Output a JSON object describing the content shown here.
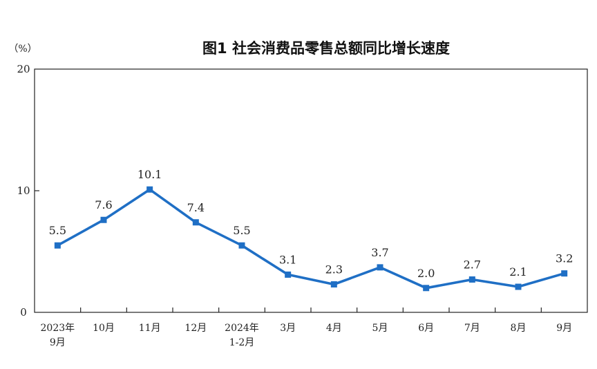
{
  "chart_data": {
    "type": "line",
    "title": "图1  社会消费品零售总额同比增长速度",
    "unit_label": "（%）",
    "ylim": [
      0,
      20
    ],
    "yticks": [
      "0",
      "10",
      "20"
    ],
    "categories": [
      [
        "2023年",
        "9月"
      ],
      [
        "10月"
      ],
      [
        "11月"
      ],
      [
        "12月"
      ],
      [
        "2024年",
        "1-2月"
      ],
      [
        "3月"
      ],
      [
        "4月"
      ],
      [
        "5月"
      ],
      [
        "6月"
      ],
      [
        "7月"
      ],
      [
        "8月"
      ],
      [
        "9月"
      ]
    ],
    "values": [
      5.5,
      7.6,
      10.1,
      7.4,
      5.5,
      3.1,
      2.3,
      3.7,
      2.0,
      2.7,
      2.1,
      3.2
    ],
    "data_labels": [
      "5.5",
      "7.6",
      "10.1",
      "7.4",
      "5.5",
      "3.1",
      "2.3",
      "3.7",
      "2.0",
      "2.7",
      "2.1",
      "3.2"
    ],
    "line_color": "#1f6fc5",
    "grid": false,
    "legend": "none"
  }
}
